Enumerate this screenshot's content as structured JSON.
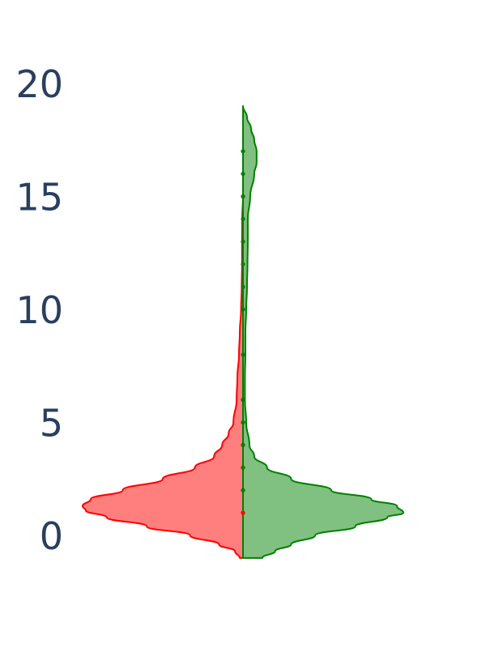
{
  "chart_data": {
    "type": "violin",
    "split": true,
    "title": "",
    "xlabel": "",
    "ylabel": "",
    "ylim": [
      -1,
      22
    ],
    "yticks": [
      0,
      5,
      10,
      15,
      20
    ],
    "grid": false,
    "legend": "none",
    "series": [
      {
        "side": "negative",
        "color": "#ff0000",
        "fill": "#ff7f7f",
        "points": [
          1,
          2,
          3,
          4,
          6,
          10,
          13,
          15
        ],
        "density": [
          [
            -1.0,
            0.02
          ],
          [
            -0.7,
            0.05
          ],
          [
            -0.4,
            0.15
          ],
          [
            0,
            0.33
          ],
          [
            0.4,
            0.6
          ],
          [
            0.8,
            0.85
          ],
          [
            1.1,
            0.98
          ],
          [
            1.3,
            1.0
          ],
          [
            1.6,
            0.95
          ],
          [
            2.0,
            0.75
          ],
          [
            2.5,
            0.5
          ],
          [
            3.0,
            0.3
          ],
          [
            3.5,
            0.18
          ],
          [
            4.0,
            0.13
          ],
          [
            4.5,
            0.09
          ],
          [
            5.0,
            0.06
          ],
          [
            6.0,
            0.04
          ],
          [
            7.0,
            0.035
          ],
          [
            8.0,
            0.025
          ],
          [
            9.0,
            0.02
          ],
          [
            10.0,
            0.012
          ],
          [
            11.0,
            0.008
          ],
          [
            12.0,
            0.006
          ],
          [
            13.0,
            0.006
          ],
          [
            14.0,
            0.005
          ],
          [
            15.0,
            0.0
          ]
        ]
      },
      {
        "side": "positive",
        "color": "#008000",
        "fill": "#80c080",
        "points": [
          2,
          3,
          4,
          5,
          6,
          8,
          10,
          11,
          12,
          13,
          14,
          15,
          16,
          17
        ],
        "density": [
          [
            -1.0,
            0.12
          ],
          [
            -0.7,
            0.2
          ],
          [
            -0.4,
            0.3
          ],
          [
            0,
            0.45
          ],
          [
            0.4,
            0.7
          ],
          [
            0.8,
            0.9
          ],
          [
            1.0,
            1.0
          ],
          [
            1.3,
            0.96
          ],
          [
            1.6,
            0.8
          ],
          [
            2.0,
            0.55
          ],
          [
            2.5,
            0.3
          ],
          [
            3.0,
            0.15
          ],
          [
            3.5,
            0.07
          ],
          [
            4.0,
            0.04
          ],
          [
            5.0,
            0.02
          ],
          [
            6.0,
            0.012
          ],
          [
            7.0,
            0.012
          ],
          [
            8.0,
            0.015
          ],
          [
            9.0,
            0.015
          ],
          [
            10.0,
            0.02
          ],
          [
            11.0,
            0.025
          ],
          [
            12.0,
            0.028
          ],
          [
            13.0,
            0.03
          ],
          [
            14.0,
            0.03
          ],
          [
            15.0,
            0.045
          ],
          [
            16.0,
            0.07
          ],
          [
            16.5,
            0.085
          ],
          [
            17.0,
            0.085
          ],
          [
            17.5,
            0.07
          ],
          [
            18.0,
            0.05
          ],
          [
            18.5,
            0.025
          ],
          [
            19.0,
            0.0
          ]
        ]
      }
    ]
  }
}
